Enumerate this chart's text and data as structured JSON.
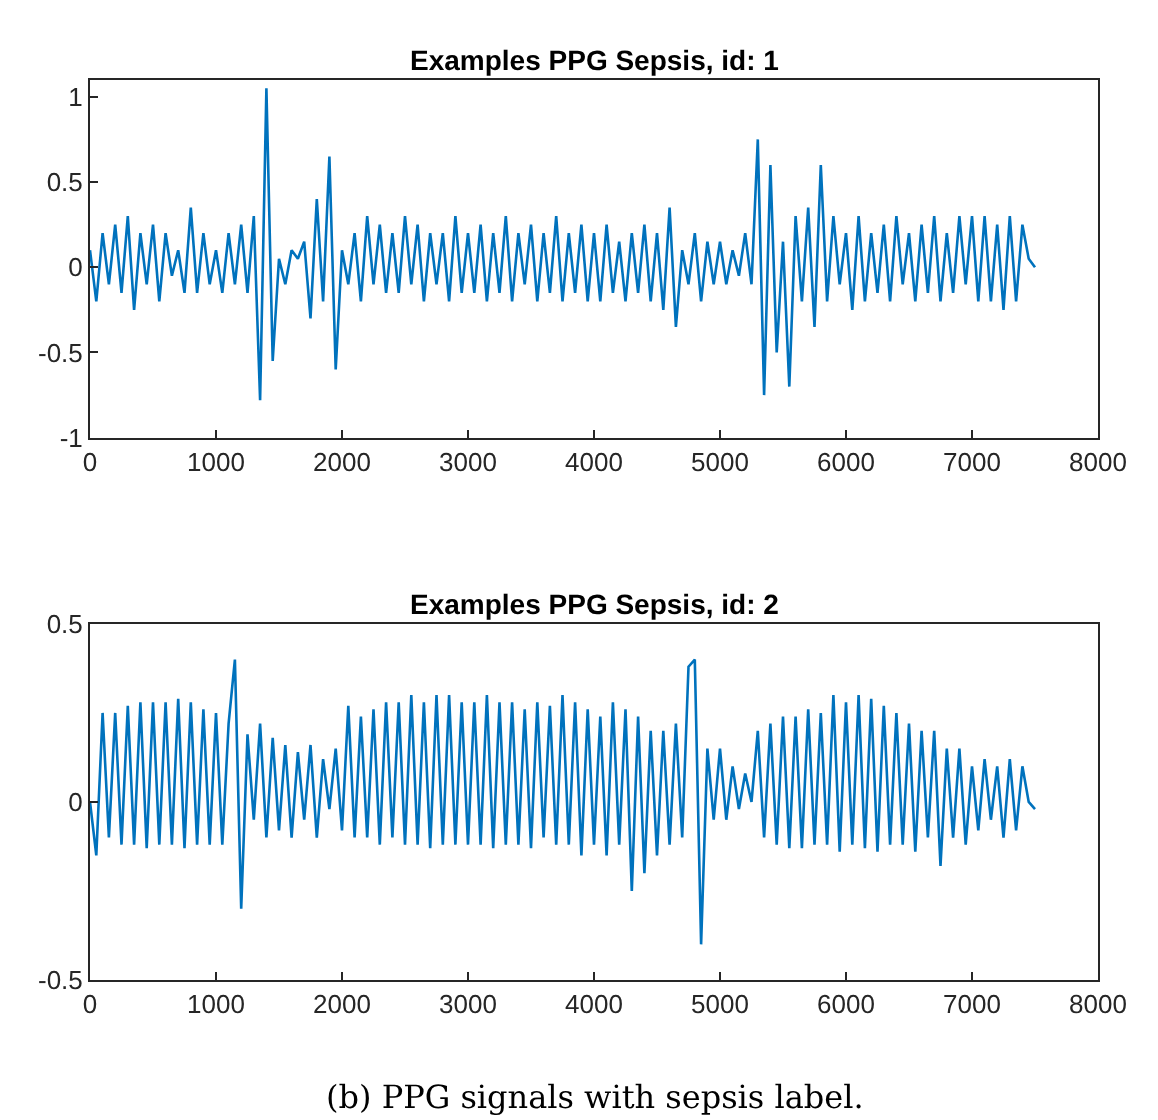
{
  "chart_data": [
    {
      "type": "line",
      "title": "Examples PPG Sepsis, id: 1",
      "x": [
        0,
        50,
        100,
        150,
        200,
        250,
        300,
        350,
        400,
        450,
        500,
        550,
        600,
        650,
        700,
        750,
        800,
        850,
        900,
        950,
        1000,
        1050,
        1100,
        1150,
        1200,
        1250,
        1300,
        1350,
        1400,
        1450,
        1500,
        1550,
        1600,
        1650,
        1700,
        1750,
        1800,
        1850,
        1900,
        1950,
        2000,
        2050,
        2100,
        2150,
        2200,
        2250,
        2300,
        2350,
        2400,
        2450,
        2500,
        2550,
        2600,
        2650,
        2700,
        2750,
        2800,
        2850,
        2900,
        2950,
        3000,
        3050,
        3100,
        3150,
        3200,
        3250,
        3300,
        3350,
        3400,
        3450,
        3500,
        3550,
        3600,
        3650,
        3700,
        3750,
        3800,
        3850,
        3900,
        3950,
        4000,
        4050,
        4100,
        4150,
        4200,
        4250,
        4300,
        4350,
        4400,
        4450,
        4500,
        4550,
        4600,
        4650,
        4700,
        4750,
        4800,
        4850,
        4900,
        4950,
        5000,
        5050,
        5100,
        5150,
        5200,
        5250,
        5300,
        5350,
        5400,
        5450,
        5500,
        5550,
        5600,
        5650,
        5700,
        5750,
        5800,
        5850,
        5900,
        5950,
        6000,
        6050,
        6100,
        6150,
        6200,
        6250,
        6300,
        6350,
        6400,
        6450,
        6500,
        6550,
        6600,
        6650,
        6700,
        6750,
        6800,
        6850,
        6900,
        6950,
        7000,
        7050,
        7100,
        7150,
        7200,
        7250,
        7300,
        7350,
        7400,
        7450,
        7500
      ],
      "series": [
        {
          "color": "#0072bd",
          "values": [
            0.1,
            -0.2,
            0.2,
            -0.1,
            0.25,
            -0.15,
            0.3,
            -0.25,
            0.2,
            -0.1,
            0.25,
            -0.2,
            0.2,
            -0.05,
            0.1,
            -0.15,
            0.35,
            -0.15,
            0.2,
            -0.1,
            0.1,
            -0.15,
            0.2,
            -0.1,
            0.25,
            -0.15,
            0.3,
            -0.78,
            1.05,
            -0.55,
            0.05,
            -0.1,
            0.1,
            0.05,
            0.15,
            -0.3,
            0.4,
            -0.2,
            0.65,
            -0.6,
            0.1,
            -0.1,
            0.2,
            -0.2,
            0.3,
            -0.1,
            0.25,
            -0.15,
            0.2,
            -0.15,
            0.3,
            -0.1,
            0.25,
            -0.2,
            0.2,
            -0.1,
            0.2,
            -0.2,
            0.3,
            -0.15,
            0.2,
            -0.15,
            0.25,
            -0.2,
            0.2,
            -0.15,
            0.3,
            -0.2,
            0.2,
            -0.1,
            0.25,
            -0.2,
            0.2,
            -0.15,
            0.3,
            -0.2,
            0.2,
            -0.15,
            0.25,
            -0.2,
            0.2,
            -0.2,
            0.25,
            -0.15,
            0.15,
            -0.2,
            0.2,
            -0.15,
            0.25,
            -0.2,
            0.2,
            -0.25,
            0.35,
            -0.35,
            0.1,
            -0.1,
            0.2,
            -0.2,
            0.15,
            -0.1,
            0.15,
            -0.1,
            0.1,
            -0.05,
            0.2,
            -0.1,
            0.75,
            -0.75,
            0.6,
            -0.5,
            0.15,
            -0.7,
            0.3,
            -0.2,
            0.35,
            -0.35,
            0.6,
            -0.2,
            0.3,
            -0.1,
            0.2,
            -0.25,
            0.3,
            -0.2,
            0.2,
            -0.15,
            0.25,
            -0.2,
            0.3,
            -0.1,
            0.2,
            -0.2,
            0.25,
            -0.15,
            0.3,
            -0.2,
            0.2,
            -0.15,
            0.3,
            -0.1,
            0.3,
            -0.2,
            0.3,
            -0.2,
            0.25,
            -0.25,
            0.3,
            -0.2,
            0.25,
            0.05,
            0.0
          ]
        }
      ],
      "xlim": [
        0,
        8000
      ],
      "xticks": [
        0,
        1000,
        2000,
        3000,
        4000,
        5000,
        6000,
        7000,
        8000
      ],
      "ylim": [
        -1,
        1.1
      ],
      "yticks": [
        -1,
        -0.5,
        0,
        0.5,
        1
      ],
      "line_style": "solid",
      "marker": "none"
    },
    {
      "type": "line",
      "title": "Examples PPG Sepsis, id: 2",
      "x": [
        0,
        50,
        100,
        150,
        200,
        250,
        300,
        350,
        400,
        450,
        500,
        550,
        600,
        650,
        700,
        750,
        800,
        850,
        900,
        950,
        1000,
        1050,
        1100,
        1150,
        1200,
        1250,
        1300,
        1350,
        1400,
        1450,
        1500,
        1550,
        1600,
        1650,
        1700,
        1750,
        1800,
        1850,
        1900,
        1950,
        2000,
        2050,
        2100,
        2150,
        2200,
        2250,
        2300,
        2350,
        2400,
        2450,
        2500,
        2550,
        2600,
        2650,
        2700,
        2750,
        2800,
        2850,
        2900,
        2950,
        3000,
        3050,
        3100,
        3150,
        3200,
        3250,
        3300,
        3350,
        3400,
        3450,
        3500,
        3550,
        3600,
        3650,
        3700,
        3750,
        3800,
        3850,
        3900,
        3950,
        4000,
        4050,
        4100,
        4150,
        4200,
        4250,
        4300,
        4350,
        4400,
        4450,
        4500,
        4550,
        4600,
        4650,
        4700,
        4750,
        4800,
        4850,
        4900,
        4950,
        5000,
        5050,
        5100,
        5150,
        5200,
        5250,
        5300,
        5350,
        5400,
        5450,
        5500,
        5550,
        5600,
        5650,
        5700,
        5750,
        5800,
        5850,
        5900,
        5950,
        6000,
        6050,
        6100,
        6150,
        6200,
        6250,
        6300,
        6350,
        6400,
        6450,
        6500,
        6550,
        6600,
        6650,
        6700,
        6750,
        6800,
        6850,
        6900,
        6950,
        7000,
        7050,
        7100,
        7150,
        7200,
        7250,
        7300,
        7350,
        7400,
        7450,
        7500
      ],
      "series": [
        {
          "color": "#0072bd",
          "values": [
            0,
            -0.15,
            0.25,
            -0.1,
            0.25,
            -0.12,
            0.27,
            -0.12,
            0.28,
            -0.13,
            0.28,
            -0.12,
            0.28,
            -0.12,
            0.29,
            -0.13,
            0.28,
            -0.12,
            0.26,
            -0.12,
            0.25,
            -0.12,
            0.22,
            0.4,
            -0.3,
            0.19,
            -0.05,
            0.22,
            -0.1,
            0.18,
            -0.08,
            0.16,
            -0.1,
            0.14,
            -0.05,
            0.16,
            -0.1,
            0.12,
            -0.02,
            0.15,
            -0.08,
            0.27,
            -0.1,
            0.24,
            -0.1,
            0.26,
            -0.12,
            0.28,
            -0.1,
            0.28,
            -0.12,
            0.3,
            -0.12,
            0.28,
            -0.13,
            0.3,
            -0.12,
            0.3,
            -0.12,
            0.28,
            -0.12,
            0.28,
            -0.12,
            0.3,
            -0.13,
            0.28,
            -0.12,
            0.28,
            -0.12,
            0.26,
            -0.13,
            0.28,
            -0.1,
            0.27,
            -0.12,
            0.3,
            -0.12,
            0.28,
            -0.15,
            0.26,
            -0.12,
            0.24,
            -0.15,
            0.28,
            -0.12,
            0.26,
            -0.25,
            0.24,
            -0.2,
            0.2,
            -0.15,
            0.2,
            -0.12,
            0.22,
            -0.1,
            0.38,
            0.4,
            -0.4,
            0.15,
            -0.05,
            0.15,
            -0.05,
            0.1,
            -0.02,
            0.08,
            0.0,
            0.2,
            -0.1,
            0.22,
            -0.12,
            0.24,
            -0.13,
            0.24,
            -0.13,
            0.26,
            -0.12,
            0.25,
            -0.12,
            0.3,
            -0.14,
            0.28,
            -0.12,
            0.3,
            -0.13,
            0.29,
            -0.14,
            0.27,
            -0.12,
            0.25,
            -0.12,
            0.22,
            -0.14,
            0.2,
            -0.1,
            0.2,
            -0.18,
            0.15,
            -0.1,
            0.15,
            -0.12,
            0.1,
            -0.08,
            0.12,
            -0.05,
            0.1,
            -0.1,
            0.12,
            -0.08,
            0.1,
            0.0,
            -0.02
          ]
        }
      ],
      "xlim": [
        0,
        8000
      ],
      "xticks": [
        0,
        1000,
        2000,
        3000,
        4000,
        5000,
        6000,
        7000,
        8000
      ],
      "ylim": [
        -0.5,
        0.5
      ],
      "yticks": [
        -0.5,
        0,
        0.5
      ],
      "line_style": "solid",
      "marker": "none",
      "annotations": [
        "(b) PPG signals with sepsis label."
      ]
    }
  ]
}
